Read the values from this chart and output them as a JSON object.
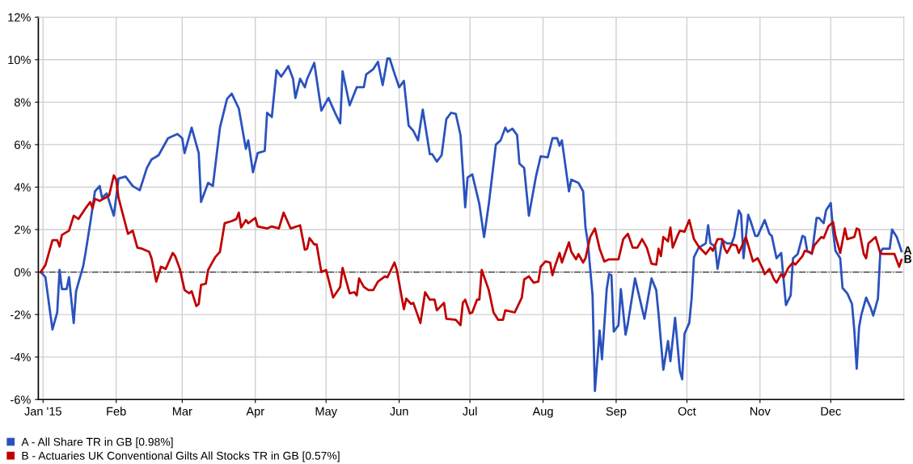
{
  "chart_data": {
    "type": "line",
    "series": [
      {
        "name": "A - All Share TR in GB [0.98%]",
        "color": "#2a52be",
        "x": [
          "2014-12-31",
          "2015-01-02",
          "2015-01-04",
          "2015-01-05",
          "2015-01-07",
          "2015-01-08",
          "2015-01-09",
          "2015-01-11",
          "2015-01-12",
          "2015-01-14",
          "2015-01-15",
          "2015-01-18",
          "2015-01-19",
          "2015-01-21",
          "2015-01-23",
          "2015-01-25",
          "2015-01-26",
          "2015-01-28",
          "2015-01-31",
          "2015-02-02",
          "2015-02-05",
          "2015-02-08",
          "2015-02-11",
          "2015-02-14",
          "2015-02-16",
          "2015-02-19",
          "2015-02-23",
          "2015-02-27",
          "2015-03-01",
          "2015-03-02",
          "2015-03-05",
          "2015-03-08",
          "2015-03-09",
          "2015-03-12",
          "2015-03-14",
          "2015-03-17",
          "2015-03-20",
          "2015-03-22",
          "2015-03-25",
          "2015-03-28",
          "2015-03-29",
          "2015-03-31",
          "2015-04-02",
          "2015-04-05",
          "2015-04-06",
          "2015-04-08",
          "2015-04-10",
          "2015-04-12",
          "2015-04-15",
          "2015-04-17",
          "2015-04-18",
          "2015-04-20",
          "2015-04-22",
          "2015-04-23",
          "2015-04-26",
          "2015-04-29",
          "2015-05-02",
          "2015-05-05",
          "2015-05-07",
          "2015-05-08",
          "2015-05-11",
          "2015-05-14",
          "2015-05-17",
          "2015-05-18",
          "2015-05-21",
          "2015-05-23",
          "2015-05-25",
          "2015-05-27",
          "2015-05-28",
          "2015-05-30",
          "2015-06-01",
          "2015-06-03",
          "2015-06-05",
          "2015-06-07",
          "2015-06-09",
          "2015-06-11",
          "2015-06-14",
          "2015-06-15",
          "2015-06-17",
          "2015-06-19",
          "2015-06-21",
          "2015-06-23",
          "2015-06-25",
          "2015-06-27",
          "2015-06-29",
          "2015-06-30",
          "2015-07-02",
          "2015-07-05",
          "2015-07-07",
          "2015-07-09",
          "2015-07-12",
          "2015-07-14",
          "2015-07-16",
          "2015-07-17",
          "2015-07-19",
          "2015-07-21",
          "2015-07-22",
          "2015-07-24",
          "2015-07-26",
          "2015-07-29",
          "2015-07-31",
          "2015-08-03",
          "2015-08-05",
          "2015-08-07",
          "2015-08-08",
          "2015-08-09",
          "2015-08-12",
          "2015-08-13",
          "2015-08-16",
          "2015-08-18",
          "2015-08-19",
          "2015-08-20",
          "2015-08-22",
          "2015-08-23",
          "2015-08-25",
          "2015-08-26",
          "2015-08-28",
          "2015-08-29",
          "2015-08-30",
          "2015-08-31",
          "2015-09-02",
          "2015-09-03",
          "2015-09-05",
          "2015-09-06",
          "2015-09-09",
          "2015-09-13",
          "2015-09-16",
          "2015-09-18",
          "2015-09-19",
          "2015-09-21",
          "2015-09-23",
          "2015-09-24",
          "2015-09-26",
          "2015-09-28",
          "2015-09-29",
          "2015-09-30",
          "2015-10-02",
          "2015-10-03",
          "2015-10-04",
          "2015-10-06",
          "2015-10-09",
          "2015-10-10",
          "2015-10-11",
          "2015-10-13",
          "2015-10-14",
          "2015-10-16",
          "2015-10-18",
          "2015-10-20",
          "2015-10-21",
          "2015-10-23",
          "2015-10-24",
          "2015-10-25",
          "2015-10-27",
          "2015-10-28",
          "2015-10-30",
          "2015-10-31",
          "2015-11-03",
          "2015-11-05",
          "2015-11-06",
          "2015-11-08",
          "2015-11-10",
          "2015-11-11",
          "2015-11-12",
          "2015-11-14",
          "2015-11-15",
          "2015-11-17",
          "2015-11-19",
          "2015-11-20",
          "2015-11-21",
          "2015-11-23",
          "2015-11-25",
          "2015-11-26",
          "2015-11-28",
          "2015-11-29",
          "2015-12-01",
          "2015-12-02",
          "2015-12-03",
          "2015-12-05",
          "2015-12-06",
          "2015-12-08",
          "2015-12-10",
          "2015-12-11",
          "2015-12-12",
          "2015-12-13",
          "2015-12-14",
          "2015-12-16",
          "2015-12-18",
          "2015-12-19",
          "2015-12-21",
          "2015-12-22",
          "2015-12-23",
          "2015-12-26",
          "2015-12-27",
          "2015-12-29",
          "2015-12-31"
        ],
        "values": [
          0,
          -0.24,
          -1.9,
          -2.7,
          -1.9,
          0.1,
          -0.8,
          -0.8,
          -0.24,
          -2.4,
          -0.9,
          0.27,
          0.9,
          2.3,
          3.8,
          4.05,
          3.5,
          3.7,
          2.65,
          4.4,
          4.5,
          4.05,
          3.85,
          4.9,
          5.3,
          5.5,
          6.3,
          6.5,
          6.3,
          5.6,
          6.8,
          5.6,
          3.3,
          4.2,
          4.05,
          6.8,
          8.15,
          8.4,
          7.7,
          5.8,
          6.2,
          4.7,
          5.6,
          5.7,
          7.5,
          7.3,
          9.5,
          9.2,
          9.7,
          9.1,
          8.2,
          9.1,
          8.7,
          9.1,
          9.85,
          7.6,
          8.2,
          7.45,
          7.0,
          9.45,
          7.85,
          8.7,
          8.7,
          9.3,
          9.55,
          9.9,
          8.8,
          10.05,
          10.05,
          9.35,
          8.7,
          9.0,
          6.9,
          6.65,
          6.2,
          7.65,
          5.55,
          5.55,
          5.2,
          5.5,
          7.2,
          7.5,
          7.45,
          6.45,
          3.05,
          4.45,
          4.6,
          3.2,
          1.65,
          3.2,
          6.0,
          6.2,
          6.8,
          6.6,
          6.75,
          6.45,
          5.1,
          4.9,
          2.65,
          4.5,
          5.45,
          5.4,
          6.3,
          6.3,
          5.95,
          6.2,
          3.8,
          4.35,
          4.2,
          3.8,
          2.1,
          1.4,
          -1.1,
          -5.6,
          -2.75,
          -4.1,
          -0.8,
          -0.1,
          -0.15,
          -2.8,
          -2.5,
          -0.8,
          -2.95,
          -2.4,
          -0.3,
          -2.2,
          -0.3,
          -0.85,
          -2.0,
          -4.6,
          -3.25,
          -4.2,
          -2.15,
          -4.65,
          -5.05,
          -2.9,
          -2.4,
          -1.25,
          0.7,
          1.15,
          1.35,
          2.2,
          1.35,
          1.2,
          0.15,
          1.5,
          1.35,
          1.35,
          1.65,
          2.9,
          2.7,
          0.65,
          2.7,
          2.4,
          1.7,
          1.7,
          2.45,
          1.8,
          1.7,
          0.65,
          0.9,
          -0.35,
          -1.55,
          -1.1,
          0.65,
          0.85,
          1.7,
          1.65,
          1.0,
          0.85,
          2.55,
          2.55,
          2.3,
          2.9,
          3.25,
          1.9,
          1.0,
          0.65,
          -0.75,
          -1.0,
          -1.5,
          -2.75,
          -4.55,
          -2.6,
          -2.0,
          -1.2,
          -1.7,
          -2.05,
          -1.25,
          0.9,
          1.1,
          1.1,
          2.0,
          1.65,
          0.98
        ]
      },
      {
        "name": "B - Actuaries UK Conventional Gilts All Stocks TR in GB [0.57%]",
        "color": "#c00000",
        "x": [
          "2014-12-31",
          "2015-01-02",
          "2015-01-05",
          "2015-01-07",
          "2015-01-08",
          "2015-01-09",
          "2015-01-12",
          "2015-01-14",
          "2015-01-16",
          "2015-01-19",
          "2015-01-21",
          "2015-01-22",
          "2015-01-23",
          "2015-01-25",
          "2015-01-29",
          "2015-01-31",
          "2015-02-01",
          "2015-02-02",
          "2015-02-04",
          "2015-02-06",
          "2015-02-08",
          "2015-02-10",
          "2015-02-12",
          "2015-02-15",
          "2015-02-16",
          "2015-02-18",
          "2015-02-20",
          "2015-02-22",
          "2015-02-25",
          "2015-02-26",
          "2015-02-28",
          "2015-03-02",
          "2015-03-04",
          "2015-03-05",
          "2015-03-07",
          "2015-03-08",
          "2015-03-09",
          "2015-03-11",
          "2015-03-12",
          "2015-03-15",
          "2015-03-17",
          "2015-03-19",
          "2015-03-22",
          "2015-03-24",
          "2015-03-25",
          "2015-03-26",
          "2015-03-28",
          "2015-03-29",
          "2015-04-01",
          "2015-04-02",
          "2015-04-06",
          "2015-04-08",
          "2015-04-11",
          "2015-04-13",
          "2015-04-16",
          "2015-04-20",
          "2015-04-22",
          "2015-04-23",
          "2015-04-24",
          "2015-04-26",
          "2015-04-27",
          "2015-04-29",
          "2015-05-01",
          "2015-05-04",
          "2015-05-07",
          "2015-05-08",
          "2015-05-11",
          "2015-05-13",
          "2015-05-14",
          "2015-05-15",
          "2015-05-17",
          "2015-05-19",
          "2015-05-21",
          "2015-05-23",
          "2015-05-26",
          "2015-05-27",
          "2015-05-30",
          "2015-05-31",
          "2015-06-03",
          "2015-06-04",
          "2015-06-06",
          "2015-06-07",
          "2015-06-10",
          "2015-06-12",
          "2015-06-14",
          "2015-06-16",
          "2015-06-17",
          "2015-06-20",
          "2015-06-21",
          "2015-06-25",
          "2015-06-27",
          "2015-06-28",
          "2015-06-29",
          "2015-07-01",
          "2015-07-02",
          "2015-07-04",
          "2015-07-05",
          "2015-07-06",
          "2015-07-09",
          "2015-07-11",
          "2015-07-13",
          "2015-07-15",
          "2015-07-16",
          "2015-07-20",
          "2015-07-23",
          "2015-07-24",
          "2015-07-26",
          "2015-07-28",
          "2015-07-30",
          "2015-07-31",
          "2015-08-02",
          "2015-08-04",
          "2015-08-05",
          "2015-08-06",
          "2015-08-08",
          "2015-08-09",
          "2015-08-12",
          "2015-08-13",
          "2015-08-15",
          "2015-08-16",
          "2015-08-18",
          "2015-08-19",
          "2015-08-21",
          "2015-08-23",
          "2015-08-25",
          "2015-08-27",
          "2015-08-29",
          "2015-09-02",
          "2015-09-04",
          "2015-09-06",
          "2015-09-08",
          "2015-09-10",
          "2015-09-12",
          "2015-09-14",
          "2015-09-16",
          "2015-09-18",
          "2015-09-19",
          "2015-09-20",
          "2015-09-21",
          "2015-09-23",
          "2015-09-24",
          "2015-09-25",
          "2015-09-27",
          "2015-09-28",
          "2015-09-30",
          "2015-10-02",
          "2015-10-04",
          "2015-10-06",
          "2015-10-09",
          "2015-10-11",
          "2015-10-12",
          "2015-10-14",
          "2015-10-16",
          "2015-10-17",
          "2015-10-18",
          "2015-10-20",
          "2015-10-22",
          "2015-10-23",
          "2015-10-26",
          "2015-10-29",
          "2015-10-31",
          "2015-11-02",
          "2015-11-03",
          "2015-11-05",
          "2015-11-07",
          "2015-11-08",
          "2015-11-10",
          "2015-11-11",
          "2015-11-13",
          "2015-11-15",
          "2015-11-16",
          "2015-11-19",
          "2015-11-20",
          "2015-11-23",
          "2015-11-24",
          "2015-11-27",
          "2015-11-28",
          "2015-11-30",
          "2015-12-02",
          "2015-12-03",
          "2015-12-05",
          "2015-12-07",
          "2015-12-08",
          "2015-12-11",
          "2015-12-12",
          "2015-12-13",
          "2015-12-15",
          "2015-12-16",
          "2015-12-17",
          "2015-12-20",
          "2015-12-22",
          "2015-12-23",
          "2015-12-28",
          "2015-12-30",
          "2015-12-31"
        ],
        "values": [
          0,
          0.33,
          1.5,
          1.5,
          1.2,
          1.75,
          1.95,
          2.65,
          2.5,
          3.0,
          3.3,
          3.0,
          3.45,
          3.35,
          3.6,
          4.55,
          4.35,
          3.5,
          2.65,
          1.8,
          1.95,
          1.15,
          1.1,
          0.95,
          0.65,
          -0.45,
          0.25,
          0.15,
          0.9,
          0.75,
          0.15,
          -0.85,
          -1.0,
          -0.9,
          -1.6,
          -1.5,
          -0.6,
          -0.55,
          0.1,
          0.7,
          0.95,
          2.3,
          2.4,
          2.5,
          2.8,
          2.1,
          2.45,
          2.3,
          2.55,
          2.15,
          2.05,
          2.15,
          2.05,
          2.8,
          2.05,
          2.2,
          1.05,
          1.1,
          1.6,
          1.3,
          1.3,
          0.0,
          0.1,
          -1.2,
          -0.7,
          0.2,
          -1.0,
          -0.95,
          -1.1,
          -0.3,
          -0.7,
          -0.85,
          -0.85,
          -0.45,
          -0.2,
          -0.25,
          0.45,
          0.1,
          -1.75,
          -1.25,
          -1.5,
          -1.45,
          -2.4,
          -0.95,
          -1.3,
          -1.3,
          -1.8,
          -1.45,
          -2.2,
          -2.25,
          -2.5,
          -1.45,
          -1.3,
          -1.95,
          -1.9,
          -1.3,
          -1.3,
          0.1,
          -0.85,
          -1.9,
          -2.25,
          -2.25,
          -1.8,
          -1.9,
          -1.2,
          -0.35,
          -0.2,
          -0.5,
          -0.45,
          0.25,
          0.5,
          0.45,
          -0.15,
          0.25,
          0.9,
          0.45,
          1.4,
          0.95,
          0.6,
          0.85,
          0.45,
          0.65,
          1.65,
          2.05,
          1.1,
          0.5,
          0.6,
          0.6,
          1.55,
          1.8,
          1.15,
          1.15,
          1.55,
          1.15,
          0.4,
          0.35,
          1.1,
          0.75,
          1.65,
          1.45,
          2.1,
          1.15,
          1.7,
          1.95,
          1.9,
          2.45,
          1.55,
          1.2,
          0.85,
          1.15,
          1.0,
          1.55,
          1.55,
          1.1,
          0.9,
          1.3,
          1.25,
          0.9,
          1.65,
          0.5,
          0.65,
          0.2,
          -0.1,
          0.15,
          -0.35,
          -0.5,
          -0.1,
          -0.25,
          0.2,
          0.45,
          0.35,
          0.75,
          1.0,
          0.9,
          1.25,
          1.65,
          1.6,
          2.15,
          2.35,
          1.7,
          0.9,
          2.05,
          1.55,
          1.65,
          2.05,
          2.0,
          0.85,
          0.65,
          1.35,
          1.65,
          0.9,
          0.85,
          0.85,
          0.25,
          0.57
        ]
      }
    ],
    "xlim": [
      "2014-12-30",
      "2016-01-01"
    ],
    "xticks": [
      {
        "value": "2015-01-01",
        "label": "Jan '15"
      },
      {
        "value": "2015-02-01",
        "label": "Feb"
      },
      {
        "value": "2015-03-01",
        "label": "Mar"
      },
      {
        "value": "2015-04-01",
        "label": "Apr"
      },
      {
        "value": "2015-05-01",
        "label": "May"
      },
      {
        "value": "2015-06-01",
        "label": "Jun"
      },
      {
        "value": "2015-07-01",
        "label": "Jul"
      },
      {
        "value": "2015-08-01",
        "label": "Aug"
      },
      {
        "value": "2015-09-01",
        "label": "Sep"
      },
      {
        "value": "2015-10-01",
        "label": "Oct"
      },
      {
        "value": "2015-11-01",
        "label": "Nov"
      },
      {
        "value": "2015-12-01",
        "label": "Dec"
      }
    ],
    "ylim": [
      -6,
      12
    ],
    "yticks": [
      {
        "value": -6,
        "label": "-6%"
      },
      {
        "value": -4,
        "label": "-4%"
      },
      {
        "value": -2,
        "label": "-2%"
      },
      {
        "value": 0,
        "label": "0%"
      },
      {
        "value": 2,
        "label": "2%"
      },
      {
        "value": 4,
        "label": "4%"
      },
      {
        "value": 6,
        "label": "6%"
      },
      {
        "value": 8,
        "label": "8%"
      },
      {
        "value": 10,
        "label": "10%"
      },
      {
        "value": 12,
        "label": "12%"
      }
    ],
    "ref_lines": [
      {
        "axis": "y",
        "value": 0,
        "color": "#333333",
        "line_style": "dotted"
      }
    ],
    "annotations": [
      {
        "text": "A",
        "x": "2015-12-31",
        "y": 0.98
      },
      {
        "text": "B",
        "x": "2015-12-31",
        "y": 0.57
      }
    ],
    "grid": true,
    "legend": "bottom",
    "marker": "none",
    "line_style": "solid"
  }
}
